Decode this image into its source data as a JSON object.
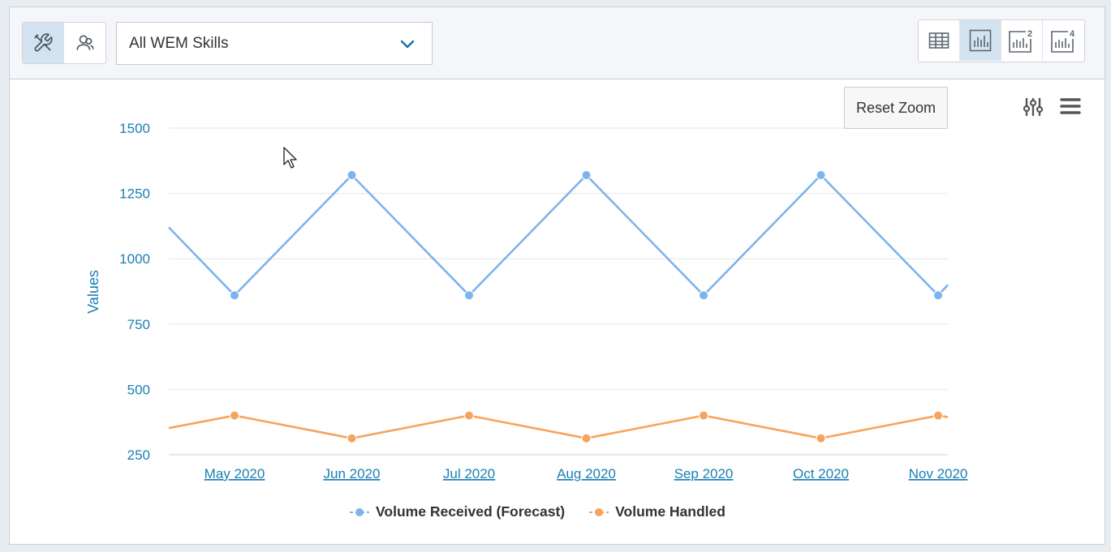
{
  "toolbar": {
    "left_buttons": [
      {
        "name": "tools-icon",
        "active": true
      },
      {
        "name": "agents-icon",
        "active": false
      }
    ],
    "skills_select": {
      "value": "All WEM Skills"
    },
    "view_buttons": [
      {
        "name": "table-view-icon",
        "active": true
      },
      {
        "name": "chart-view-icon",
        "active": true
      },
      {
        "name": "chart-view-2-icon",
        "badge": "2",
        "active": false
      },
      {
        "name": "chart-view-4-icon",
        "badge": "4",
        "active": false
      }
    ]
  },
  "chart_controls": {
    "reset_zoom_label": "Reset Zoom",
    "settings_icon": "sliders-icon",
    "menu_icon": "hamburger-menu-icon"
  },
  "chart_data": {
    "type": "line",
    "ylabel": "Values",
    "xlabel": "",
    "ylim": [
      250,
      1500
    ],
    "yticks": [
      250,
      500,
      750,
      1000,
      1250,
      1500
    ],
    "categories": [
      "May 2020",
      "Jun 2020",
      "Jul 2020",
      "Aug 2020",
      "Sep 2020",
      "Oct 2020",
      "Nov 2020"
    ],
    "series": [
      {
        "name": "Volume Received (Forecast)",
        "color": "#7cb5ec",
        "values": [
          860,
          1320,
          860,
          1320,
          860,
          1320,
          860
        ],
        "lead_in": 1120,
        "lead_out": 900
      },
      {
        "name": "Volume Handled",
        "color": "#f7a35c",
        "values": [
          400,
          313,
          400,
          313,
          400,
          313,
          400
        ],
        "lead_in": 352,
        "lead_out": 394
      }
    ],
    "grid": true,
    "legend_position": "bottom-center"
  }
}
